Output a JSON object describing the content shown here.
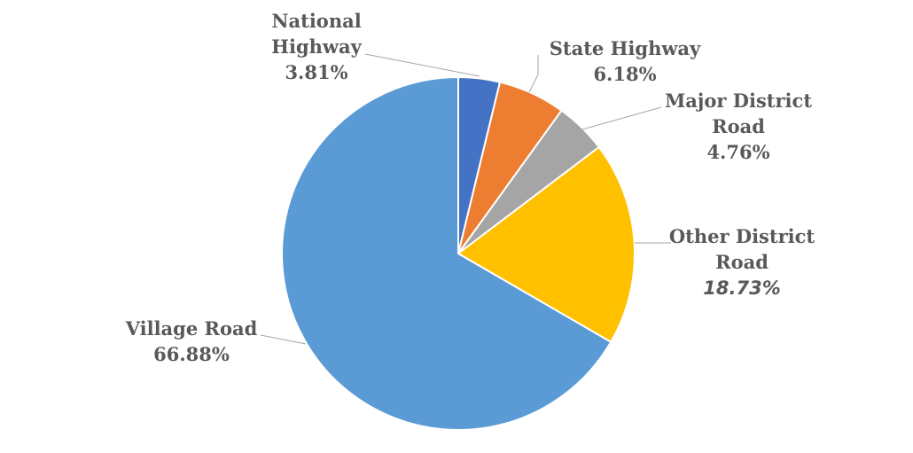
{
  "chart_data": {
    "type": "pie",
    "title": "",
    "slices": [
      {
        "name": "National Highway",
        "label_lines": [
          "National",
          "Highway"
        ],
        "value": 3.81,
        "value_text": "3.81%",
        "color": "#4472C4",
        "value_style": "normal"
      },
      {
        "name": "State Highway",
        "label_lines": [
          "State Highway"
        ],
        "value": 6.18,
        "value_text": "6.18%",
        "color": "#ED7D31",
        "value_style": "normal"
      },
      {
        "name": "Major District Road",
        "label_lines": [
          "Major District",
          "Road"
        ],
        "value": 4.76,
        "value_text": "4.76%",
        "color": "#A5A5A5",
        "value_style": "normal"
      },
      {
        "name": "Other District Road",
        "label_lines": [
          "Other District",
          "Road"
        ],
        "value": 18.73,
        "value_text": "18.73%",
        "color": "#FFC000",
        "value_style": "italic"
      },
      {
        "name": "Village Road",
        "label_lines": [
          "Village Road"
        ],
        "value": 66.88,
        "value_text": "66.88%",
        "color": "#5B9BD5",
        "value_style": "normal"
      }
    ],
    "start_angle": "12 o'clock",
    "direction": "clockwise",
    "legend": "none"
  }
}
